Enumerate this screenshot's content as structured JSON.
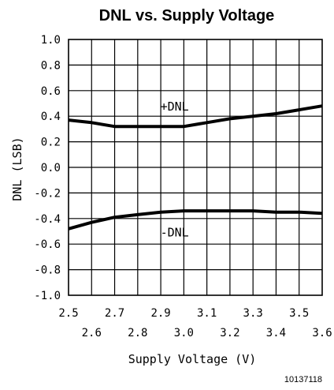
{
  "chart_data": {
    "type": "line",
    "title": "DNL vs. Supply Voltage",
    "xlabel": "Supply Voltage (V)",
    "ylabel": "DNL (LSB)",
    "xlim": [
      2.5,
      3.6
    ],
    "ylim": [
      -1.0,
      1.0
    ],
    "grid": true,
    "x_tick_labels": [
      "2.5",
      "2.6",
      "2.7",
      "2.8",
      "2.9",
      "3.0",
      "3.1",
      "3.2",
      "3.3",
      "3.4",
      "3.5",
      "3.6"
    ],
    "y_tick_labels": [
      "1.0",
      "0.8",
      "0.6",
      "0.4",
      "0.2",
      "0.0",
      "-0.2",
      "-0.4",
      "-0.6",
      "-0.8",
      "-1.0"
    ],
    "series": [
      {
        "name": "+DNL",
        "x": [
          2.5,
          2.6,
          2.7,
          2.8,
          2.9,
          3.0,
          3.1,
          3.2,
          3.3,
          3.4,
          3.5,
          3.6
        ],
        "y": [
          0.37,
          0.35,
          0.32,
          0.32,
          0.32,
          0.32,
          0.35,
          0.38,
          0.4,
          0.42,
          0.45,
          0.48
        ]
      },
      {
        "name": "-DNL",
        "x": [
          2.5,
          2.6,
          2.7,
          2.8,
          2.9,
          3.0,
          3.1,
          3.2,
          3.3,
          3.4,
          3.5,
          3.6
        ],
        "y": [
          -0.48,
          -0.43,
          -0.39,
          -0.37,
          -0.35,
          -0.34,
          -0.34,
          -0.34,
          -0.34,
          -0.35,
          -0.35,
          -0.36
        ]
      }
    ],
    "figure_id": "10137118"
  }
}
